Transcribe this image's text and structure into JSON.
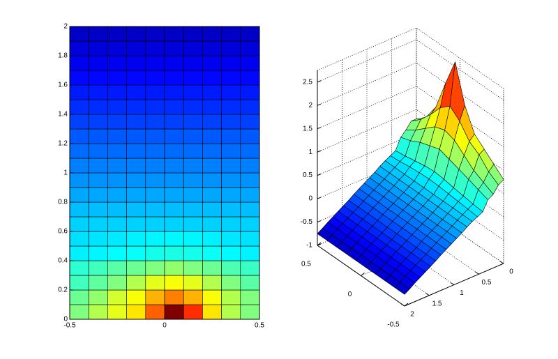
{
  "chart_data": [
    {
      "type": "heatmap",
      "xlim": [
        -0.5,
        0.5
      ],
      "ylim": [
        0,
        2
      ],
      "xticks": [
        -0.5,
        0,
        0.5
      ],
      "yticks": [
        0,
        0.2,
        0.4,
        0.6,
        0.8,
        1,
        1.2,
        1.4,
        1.6,
        1.8,
        2
      ],
      "clim": [
        -1,
        2.6
      ],
      "values": [
        [
          0.8,
          0.98,
          1.16,
          1.34,
          1.81,
          2.6,
          1.99,
          1.34,
          0.98,
          0.8
        ],
        [
          0.73,
          0.87,
          1.09,
          1.23,
          1.52,
          1.7,
          1.52,
          1.23,
          0.98,
          0.8
        ],
        [
          0.58,
          0.69,
          0.8,
          0.98,
          1.16,
          1.23,
          1.16,
          0.98,
          0.8,
          0.66
        ],
        [
          0.51,
          0.58,
          0.66,
          0.73,
          0.8,
          0.87,
          0.8,
          0.73,
          0.62,
          0.55
        ],
        [
          0.3,
          0.32,
          0.35,
          0.38,
          0.42,
          0.44,
          0.42,
          0.38,
          0.34,
          0.31
        ],
        [
          0.24,
          0.26,
          0.28,
          0.3,
          0.32,
          0.33,
          0.32,
          0.3,
          0.27,
          0.25
        ],
        [
          0.19,
          0.19,
          0.19,
          0.19,
          0.19,
          0.19,
          0.19,
          0.19,
          0.19,
          0.19
        ],
        [
          0.12,
          0.12,
          0.12,
          0.12,
          0.12,
          0.12,
          0.12,
          0.12,
          0.12,
          0.12
        ],
        [
          0.04,
          0.04,
          0.04,
          0.04,
          0.04,
          0.04,
          0.04,
          0.04,
          0.04,
          0.04
        ],
        [
          -0.03,
          -0.03,
          -0.03,
          -0.03,
          -0.03,
          -0.03,
          -0.03,
          -0.03,
          -0.03,
          -0.03
        ],
        [
          -0.1,
          -0.1,
          -0.1,
          -0.1,
          -0.1,
          -0.1,
          -0.1,
          -0.1,
          -0.1,
          -0.1
        ],
        [
          -0.17,
          -0.17,
          -0.17,
          -0.17,
          -0.17,
          -0.17,
          -0.17,
          -0.17,
          -0.17,
          -0.17
        ],
        [
          -0.24,
          -0.24,
          -0.24,
          -0.24,
          -0.24,
          -0.24,
          -0.24,
          -0.24,
          -0.24,
          -0.24
        ],
        [
          -0.32,
          -0.32,
          -0.32,
          -0.32,
          -0.32,
          -0.32,
          -0.32,
          -0.32,
          -0.32,
          -0.32
        ],
        [
          -0.39,
          -0.39,
          -0.39,
          -0.39,
          -0.39,
          -0.39,
          -0.39,
          -0.39,
          -0.39,
          -0.39
        ],
        [
          -0.46,
          -0.46,
          -0.46,
          -0.46,
          -0.46,
          -0.46,
          -0.46,
          -0.46,
          -0.46,
          -0.46
        ],
        [
          -0.53,
          -0.53,
          -0.53,
          -0.53,
          -0.53,
          -0.53,
          -0.53,
          -0.53,
          -0.53,
          -0.53
        ],
        [
          -0.6,
          -0.6,
          -0.6,
          -0.6,
          -0.6,
          -0.6,
          -0.6,
          -0.6,
          -0.6,
          -0.6
        ],
        [
          -0.68,
          -0.68,
          -0.68,
          -0.68,
          -0.68,
          -0.68,
          -0.68,
          -0.68,
          -0.68,
          -0.68
        ],
        [
          -0.75,
          -0.75,
          -0.75,
          -0.75,
          -0.75,
          -0.75,
          -0.75,
          -0.75,
          -0.75,
          -0.75
        ]
      ]
    },
    {
      "type": "surface",
      "xlim": [
        0,
        2
      ],
      "ylim": [
        -0.5,
        0.5
      ],
      "zlim": [
        -1,
        2.75
      ],
      "xticks": [
        0,
        0.5,
        1,
        1.5,
        2
      ],
      "yticks": [
        -0.5,
        0,
        0.5
      ],
      "zticks": [
        -1,
        -0.5,
        0,
        0.5,
        1,
        1.5,
        2,
        2.5
      ],
      "clim": [
        -1,
        2.6
      ],
      "grid": true,
      "values": [
        [
          0.8,
          0.98,
          1.16,
          1.34,
          1.81,
          2.6,
          1.99,
          1.34,
          0.98,
          0.8
        ],
        [
          0.73,
          0.87,
          1.09,
          1.23,
          1.52,
          1.7,
          1.52,
          1.23,
          0.98,
          0.8
        ],
        [
          0.58,
          0.69,
          0.8,
          0.98,
          1.16,
          1.23,
          1.16,
          0.98,
          0.8,
          0.66
        ],
        [
          0.51,
          0.58,
          0.66,
          0.73,
          0.8,
          0.87,
          0.8,
          0.73,
          0.62,
          0.55
        ],
        [
          0.3,
          0.32,
          0.35,
          0.38,
          0.42,
          0.44,
          0.42,
          0.38,
          0.34,
          0.31
        ],
        [
          0.24,
          0.26,
          0.28,
          0.3,
          0.32,
          0.33,
          0.32,
          0.3,
          0.27,
          0.25
        ],
        [
          0.19,
          0.19,
          0.19,
          0.19,
          0.19,
          0.19,
          0.19,
          0.19,
          0.19,
          0.19
        ],
        [
          0.12,
          0.12,
          0.12,
          0.12,
          0.12,
          0.12,
          0.12,
          0.12,
          0.12,
          0.12
        ],
        [
          0.04,
          0.04,
          0.04,
          0.04,
          0.04,
          0.04,
          0.04,
          0.04,
          0.04,
          0.04
        ],
        [
          -0.03,
          -0.03,
          -0.03,
          -0.03,
          -0.03,
          -0.03,
          -0.03,
          -0.03,
          -0.03,
          -0.03
        ],
        [
          -0.1,
          -0.1,
          -0.1,
          -0.1,
          -0.1,
          -0.1,
          -0.1,
          -0.1,
          -0.1,
          -0.1
        ],
        [
          -0.17,
          -0.17,
          -0.17,
          -0.17,
          -0.17,
          -0.17,
          -0.17,
          -0.17,
          -0.17,
          -0.17
        ],
        [
          -0.24,
          -0.24,
          -0.24,
          -0.24,
          -0.24,
          -0.24,
          -0.24,
          -0.24,
          -0.24,
          -0.24
        ],
        [
          -0.32,
          -0.32,
          -0.32,
          -0.32,
          -0.32,
          -0.32,
          -0.32,
          -0.32,
          -0.32,
          -0.32
        ],
        [
          -0.39,
          -0.39,
          -0.39,
          -0.39,
          -0.39,
          -0.39,
          -0.39,
          -0.39,
          -0.39,
          -0.39
        ],
        [
          -0.46,
          -0.46,
          -0.46,
          -0.46,
          -0.46,
          -0.46,
          -0.46,
          -0.46,
          -0.46,
          -0.46
        ],
        [
          -0.53,
          -0.53,
          -0.53,
          -0.53,
          -0.53,
          -0.53,
          -0.53,
          -0.53,
          -0.53,
          -0.53
        ],
        [
          -0.6,
          -0.6,
          -0.6,
          -0.6,
          -0.6,
          -0.6,
          -0.6,
          -0.6,
          -0.6,
          -0.6
        ],
        [
          -0.68,
          -0.68,
          -0.68,
          -0.68,
          -0.68,
          -0.68,
          -0.68,
          -0.68,
          -0.68,
          -0.68
        ],
        [
          -0.75,
          -0.75,
          -0.75,
          -0.75,
          -0.75,
          -0.75,
          -0.75,
          -0.75,
          -0.75,
          -0.75
        ]
      ]
    }
  ]
}
